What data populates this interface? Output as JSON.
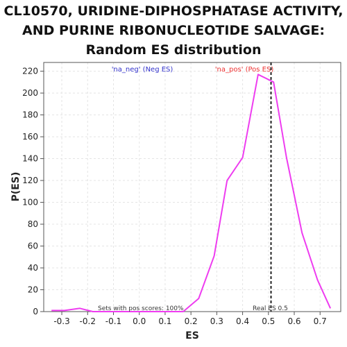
{
  "title": {
    "line1": "CL10570, URIDINE-DIPHOSPHATASE ACTIVITY,",
    "line2": "AND PURINE RIBONUCLEOTIDE SALVAGE:",
    "line3": "Random ES distribution"
  },
  "chart_data": {
    "type": "line",
    "xlabel": "ES",
    "ylabel": "P(ES)",
    "xlim": [
      -0.37,
      0.78
    ],
    "ylim": [
      0,
      228
    ],
    "grid": true,
    "x_ticks": [
      -0.3,
      -0.2,
      -0.1,
      0.0,
      0.1,
      0.2,
      0.3,
      0.4,
      0.5,
      0.6,
      0.7
    ],
    "x_tick_labels": [
      "-0.3",
      "-0.2",
      "-0.1",
      "0.0",
      "0.1",
      "0.2",
      "0.3",
      "0.4",
      "0.5",
      "0.6",
      "0.7"
    ],
    "y_ticks": [
      0,
      20,
      40,
      60,
      80,
      100,
      120,
      140,
      160,
      180,
      200,
      220
    ],
    "y_tick_labels": [
      "0",
      "20",
      "40",
      "60",
      "80",
      "100",
      "120",
      "140",
      "160",
      "180",
      "200",
      "220"
    ],
    "series": [
      {
        "color": "#ee3cf0",
        "x": [
          -0.34,
          -0.29,
          -0.23,
          -0.18,
          -0.12,
          -0.06,
          0.0,
          0.06,
          0.12,
          0.17,
          0.23,
          0.29,
          0.34,
          0.4,
          0.46,
          0.52,
          0.57,
          0.63,
          0.69,
          0.74
        ],
        "y": [
          1,
          1,
          3,
          0,
          0,
          0,
          0,
          0,
          0,
          0,
          12,
          51,
          120,
          141,
          217,
          210,
          141,
          72,
          29,
          3
        ]
      }
    ],
    "real_es": {
      "x": 0.51,
      "label": "Real ES 0.5",
      "color": "#222222",
      "style": "dashed"
    },
    "legend": {
      "neg": {
        "label": "'na_neg' (Neg ES)",
        "color": "#3333cc"
      },
      "pos": {
        "label": "'na_pos' (Pos ES)",
        "color": "#ee3333"
      }
    },
    "annotation": "Sets with pos scores: 100%"
  }
}
